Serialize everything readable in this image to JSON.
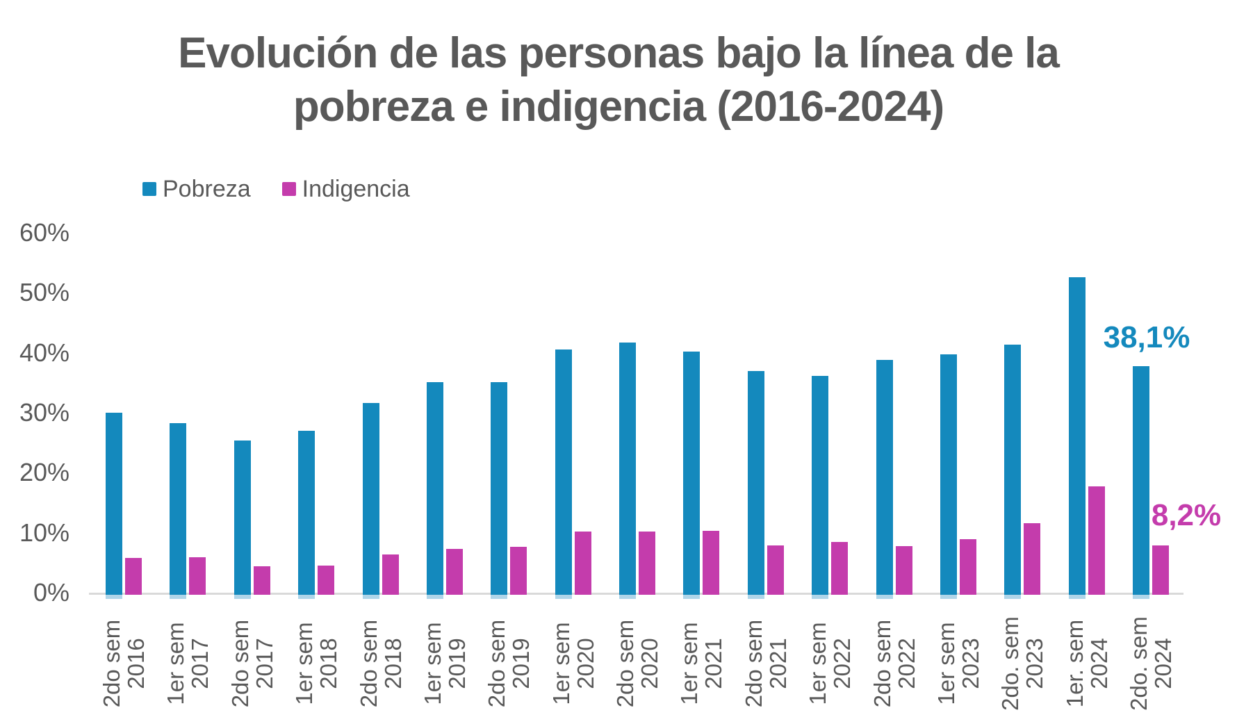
{
  "title": {
    "lines": [
      "Evolución de las personas bajo la línea de la",
      "pobreza e indigencia (2016-2024)"
    ]
  },
  "legend": [
    {
      "label": "Pobreza",
      "color": "#1489BD"
    },
    {
      "label": "Indigencia",
      "color": "#C43CAC"
    }
  ],
  "colors": {
    "pobreza": "#1489BD",
    "pobreza_base_cap": "#AFD5E9",
    "indigencia": "#C43CAC",
    "text_gray": "#595959",
    "axis_line": "#D9D9D9"
  },
  "annotations": {
    "pobreza_final": "38,1%",
    "indigencia_final": "8,2%"
  },
  "y_axis": {
    "ticks": [
      "0%",
      "10%",
      "20%",
      "30%",
      "40%",
      "50%",
      "60%"
    ]
  },
  "chart_data": {
    "type": "bar",
    "title": "Evolución de las personas bajo la línea de la pobreza e indigencia (2016-2024)",
    "xlabel": "",
    "ylabel": "",
    "ylim": [
      0,
      60
    ],
    "y_tick_step": 10,
    "grid": false,
    "legend_position": "top-left",
    "categories": [
      "2do sem 2016",
      "1er sem 2017",
      "2do sem 2017",
      "1er sem 2018",
      "2do sem 2018",
      "1er sem 2019",
      "2do sem 2019",
      "1er sem 2020",
      "2do sem 2020",
      "1er sem 2021",
      "2do sem 2021",
      "1er sem 2022",
      "2do sem 2022",
      "1er sem 2023",
      "2do. sem 2023",
      "1er. sem 2024",
      "2do. sem 2024"
    ],
    "series": [
      {
        "name": "Pobreza",
        "color": "#1489BD",
        "values": [
          30.3,
          28.6,
          25.7,
          27.3,
          32.0,
          35.4,
          35.5,
          40.9,
          42.0,
          40.6,
          37.3,
          36.5,
          39.2,
          40.1,
          41.7,
          52.9,
          38.1
        ]
      },
      {
        "name": "Indigencia",
        "color": "#C43CAC",
        "values": [
          6.1,
          6.2,
          4.8,
          4.9,
          6.7,
          7.7,
          8.0,
          10.5,
          10.5,
          10.7,
          8.2,
          8.8,
          8.1,
          9.3,
          11.9,
          18.1,
          8.2
        ]
      }
    ],
    "data_labels": [
      {
        "series": "Pobreza",
        "category": "2do. sem 2024",
        "text": "38,1%"
      },
      {
        "series": "Indigencia",
        "category": "2do. sem 2024",
        "text": "8,2%"
      }
    ]
  }
}
